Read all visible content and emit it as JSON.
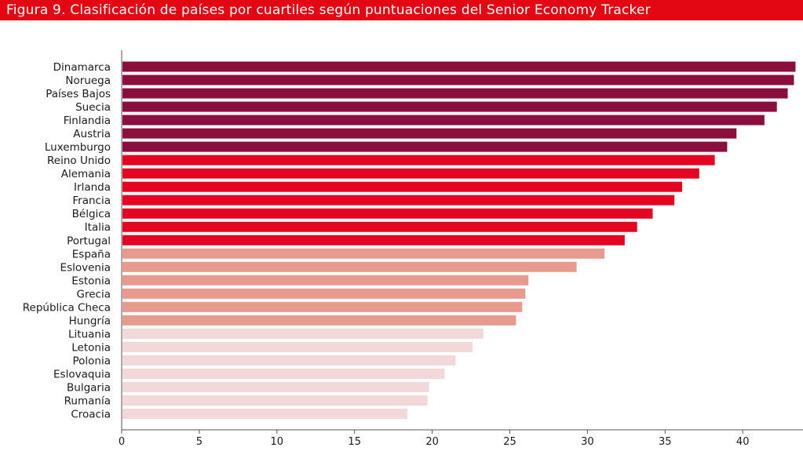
{
  "title": "Figura 9. Clasificación de países por cuartiles según puntuaciones del Senior Economy Tracker",
  "chart_data": {
    "type": "bar",
    "orientation": "horizontal",
    "title": "Figura 9. Clasificación de países por cuartiles según puntuaciones del Senior Economy Tracker",
    "xlabel": "",
    "ylabel": "",
    "xlim": [
      0,
      44
    ],
    "x_ticks": [
      0,
      5,
      10,
      15,
      20,
      25,
      30,
      35,
      40
    ],
    "grid": false,
    "categories": [
      "Dinamarca",
      "Noruega",
      "Países Bajos",
      "Suecia",
      "Finlandia",
      "Austria",
      "Luxemburgo",
      "Reino Unido",
      "Alemania",
      "Irlanda",
      "Francia",
      "Bélgica",
      "Italia",
      "Portugal",
      "España",
      "Eslovenia",
      "Estonia",
      "Grecia",
      "República Checa",
      "Hungría",
      "Lituania",
      "Letonia",
      "Polonia",
      "Eslovaquia",
      "Bulgaria",
      "Rumanía",
      "Croacia"
    ],
    "values": [
      43.4,
      43.3,
      42.9,
      42.2,
      41.4,
      39.6,
      39.0,
      38.2,
      37.2,
      36.1,
      35.6,
      34.2,
      33.2,
      32.4,
      31.1,
      29.3,
      26.2,
      26.0,
      25.8,
      25.4,
      23.3,
      22.6,
      21.5,
      20.8,
      19.8,
      19.7,
      18.4
    ],
    "quartile": [
      1,
      1,
      1,
      1,
      1,
      1,
      1,
      2,
      2,
      2,
      2,
      2,
      2,
      2,
      3,
      3,
      3,
      3,
      3,
      3,
      4,
      4,
      4,
      4,
      4,
      4,
      4
    ],
    "quartile_colors": {
      "1": "#8a0f3c",
      "2": "#e30521",
      "3": "#e69b8e",
      "4": "#f2d8d8"
    }
  }
}
